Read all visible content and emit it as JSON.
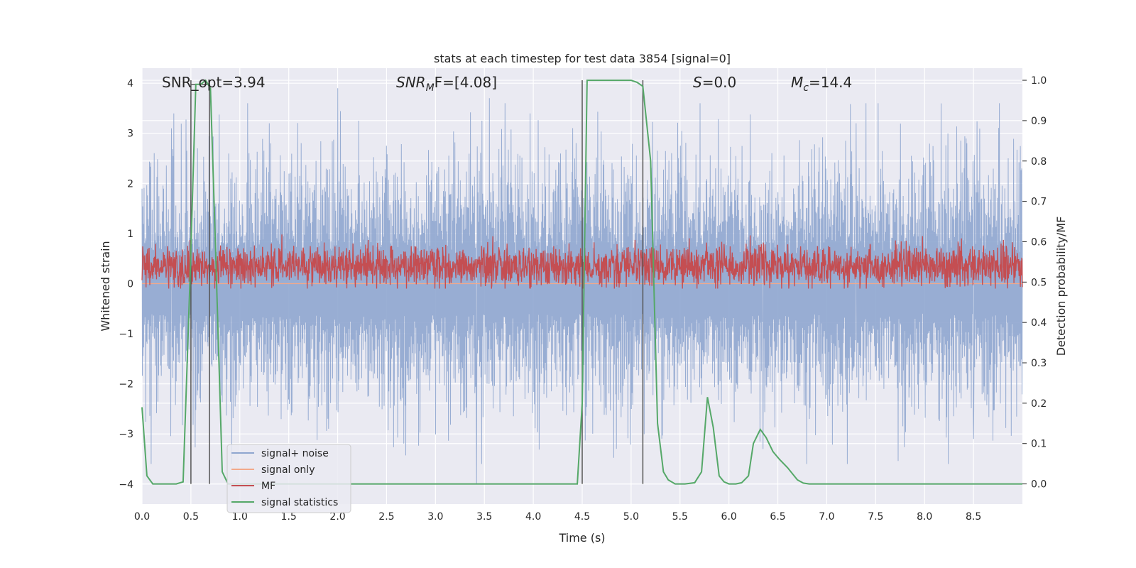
{
  "chart_data": {
    "type": "line",
    "title": "stats at each timestep for test data 3854 [signal=0]",
    "xlabel": "Time (s)",
    "ylabel": "Whitened strain",
    "ylabel_right": "Detection probability/MF",
    "xlim": [
      0.0,
      9.0
    ],
    "ylim": [
      -4.4,
      4.3
    ],
    "ylim_right": [
      -0.05,
      1.03
    ],
    "grid": true,
    "legend_placement": "lower-left",
    "x_ticks": [
      "0.0",
      "0.5",
      "1.0",
      "1.5",
      "2.0",
      "2.5",
      "3.0",
      "3.5",
      "4.0",
      "4.5",
      "5.0",
      "5.5",
      "6.0",
      "6.5",
      "7.0",
      "7.5",
      "8.0",
      "8.5"
    ],
    "y_ticks": [
      "−4",
      "−3",
      "−2",
      "−1",
      "0",
      "1",
      "2",
      "3",
      "4"
    ],
    "y_ticks_right": [
      "0.0",
      "0.1",
      "0.2",
      "0.3",
      "0.4",
      "0.5",
      "0.6",
      "0.7",
      "0.8",
      "0.9",
      "1.0"
    ],
    "annotations": {
      "snr_opt": "SNR_opt=3.94",
      "snr_mf_base": "SNR",
      "snr_mf_sub": "M",
      "snr_mf_rest": "F=[4.08]",
      "s_base": "S",
      "s_rest": "=0.0",
      "mc_base": "M",
      "mc_sub": "c",
      "mc_rest": "=14.4"
    },
    "series": [
      {
        "name": "signal+ noise",
        "color": "#8fa6cf",
        "axis": "left",
        "style": "noisy",
        "amplitude": 2.4,
        "peaks": [
          [
            2.0,
            3.9
          ],
          [
            3.42,
            -4.0
          ],
          [
            6.35,
            -3.3
          ],
          [
            1.3,
            3.2
          ],
          [
            0.3,
            3.1
          ],
          [
            3.55,
            3.7
          ],
          [
            7.3,
            3.2
          ],
          [
            8.5,
            -3.1
          ]
        ]
      },
      {
        "name": "signal only",
        "color": "#f2a98a",
        "axis": "left",
        "x": [
          0.0,
          9.0
        ],
        "y": [
          0.0,
          0.0
        ]
      },
      {
        "name": "MF",
        "color": "#c44e52",
        "axis": "left",
        "style": "noisy",
        "center": 0.35,
        "amplitude": 0.45
      },
      {
        "name": "signal statistics",
        "color": "#55a868",
        "axis": "right",
        "x": [
          0.0,
          0.05,
          0.11,
          0.17,
          0.25,
          0.35,
          0.42,
          0.49,
          0.55,
          0.6,
          0.65,
          0.7,
          0.75,
          0.82,
          0.88,
          1.0,
          1.5,
          2.0,
          3.0,
          4.0,
          4.45,
          4.5,
          4.55,
          4.6,
          4.8,
          5.0,
          5.06,
          5.12,
          5.2,
          5.27,
          5.33,
          5.38,
          5.45,
          5.55,
          5.65,
          5.72,
          5.78,
          5.84,
          5.9,
          5.95,
          6.0,
          6.07,
          6.13,
          6.2,
          6.25,
          6.32,
          6.38,
          6.45,
          6.52,
          6.6,
          6.7,
          6.76,
          6.82,
          6.9,
          7.0,
          8.0,
          9.0
        ],
        "y": [
          0.19,
          0.02,
          0.0,
          0.0,
          0.0,
          0.0,
          0.005,
          0.5,
          0.99,
          0.99,
          1.0,
          0.98,
          0.6,
          0.03,
          0.0,
          0.0,
          0.0,
          0.0,
          0.0,
          0.0,
          0.0,
          0.2,
          1.0,
          1.0,
          1.0,
          1.0,
          0.995,
          0.985,
          0.8,
          0.15,
          0.03,
          0.01,
          0.0,
          0.0,
          0.003,
          0.03,
          0.215,
          0.14,
          0.02,
          0.005,
          0.0,
          0.0,
          0.003,
          0.02,
          0.1,
          0.135,
          0.115,
          0.08,
          0.06,
          0.04,
          0.01,
          0.002,
          0.0,
          0.0,
          0.0,
          0.0,
          0.0
        ]
      }
    ],
    "vlines": [
      0.5,
      0.69,
      4.5,
      5.12
    ]
  }
}
